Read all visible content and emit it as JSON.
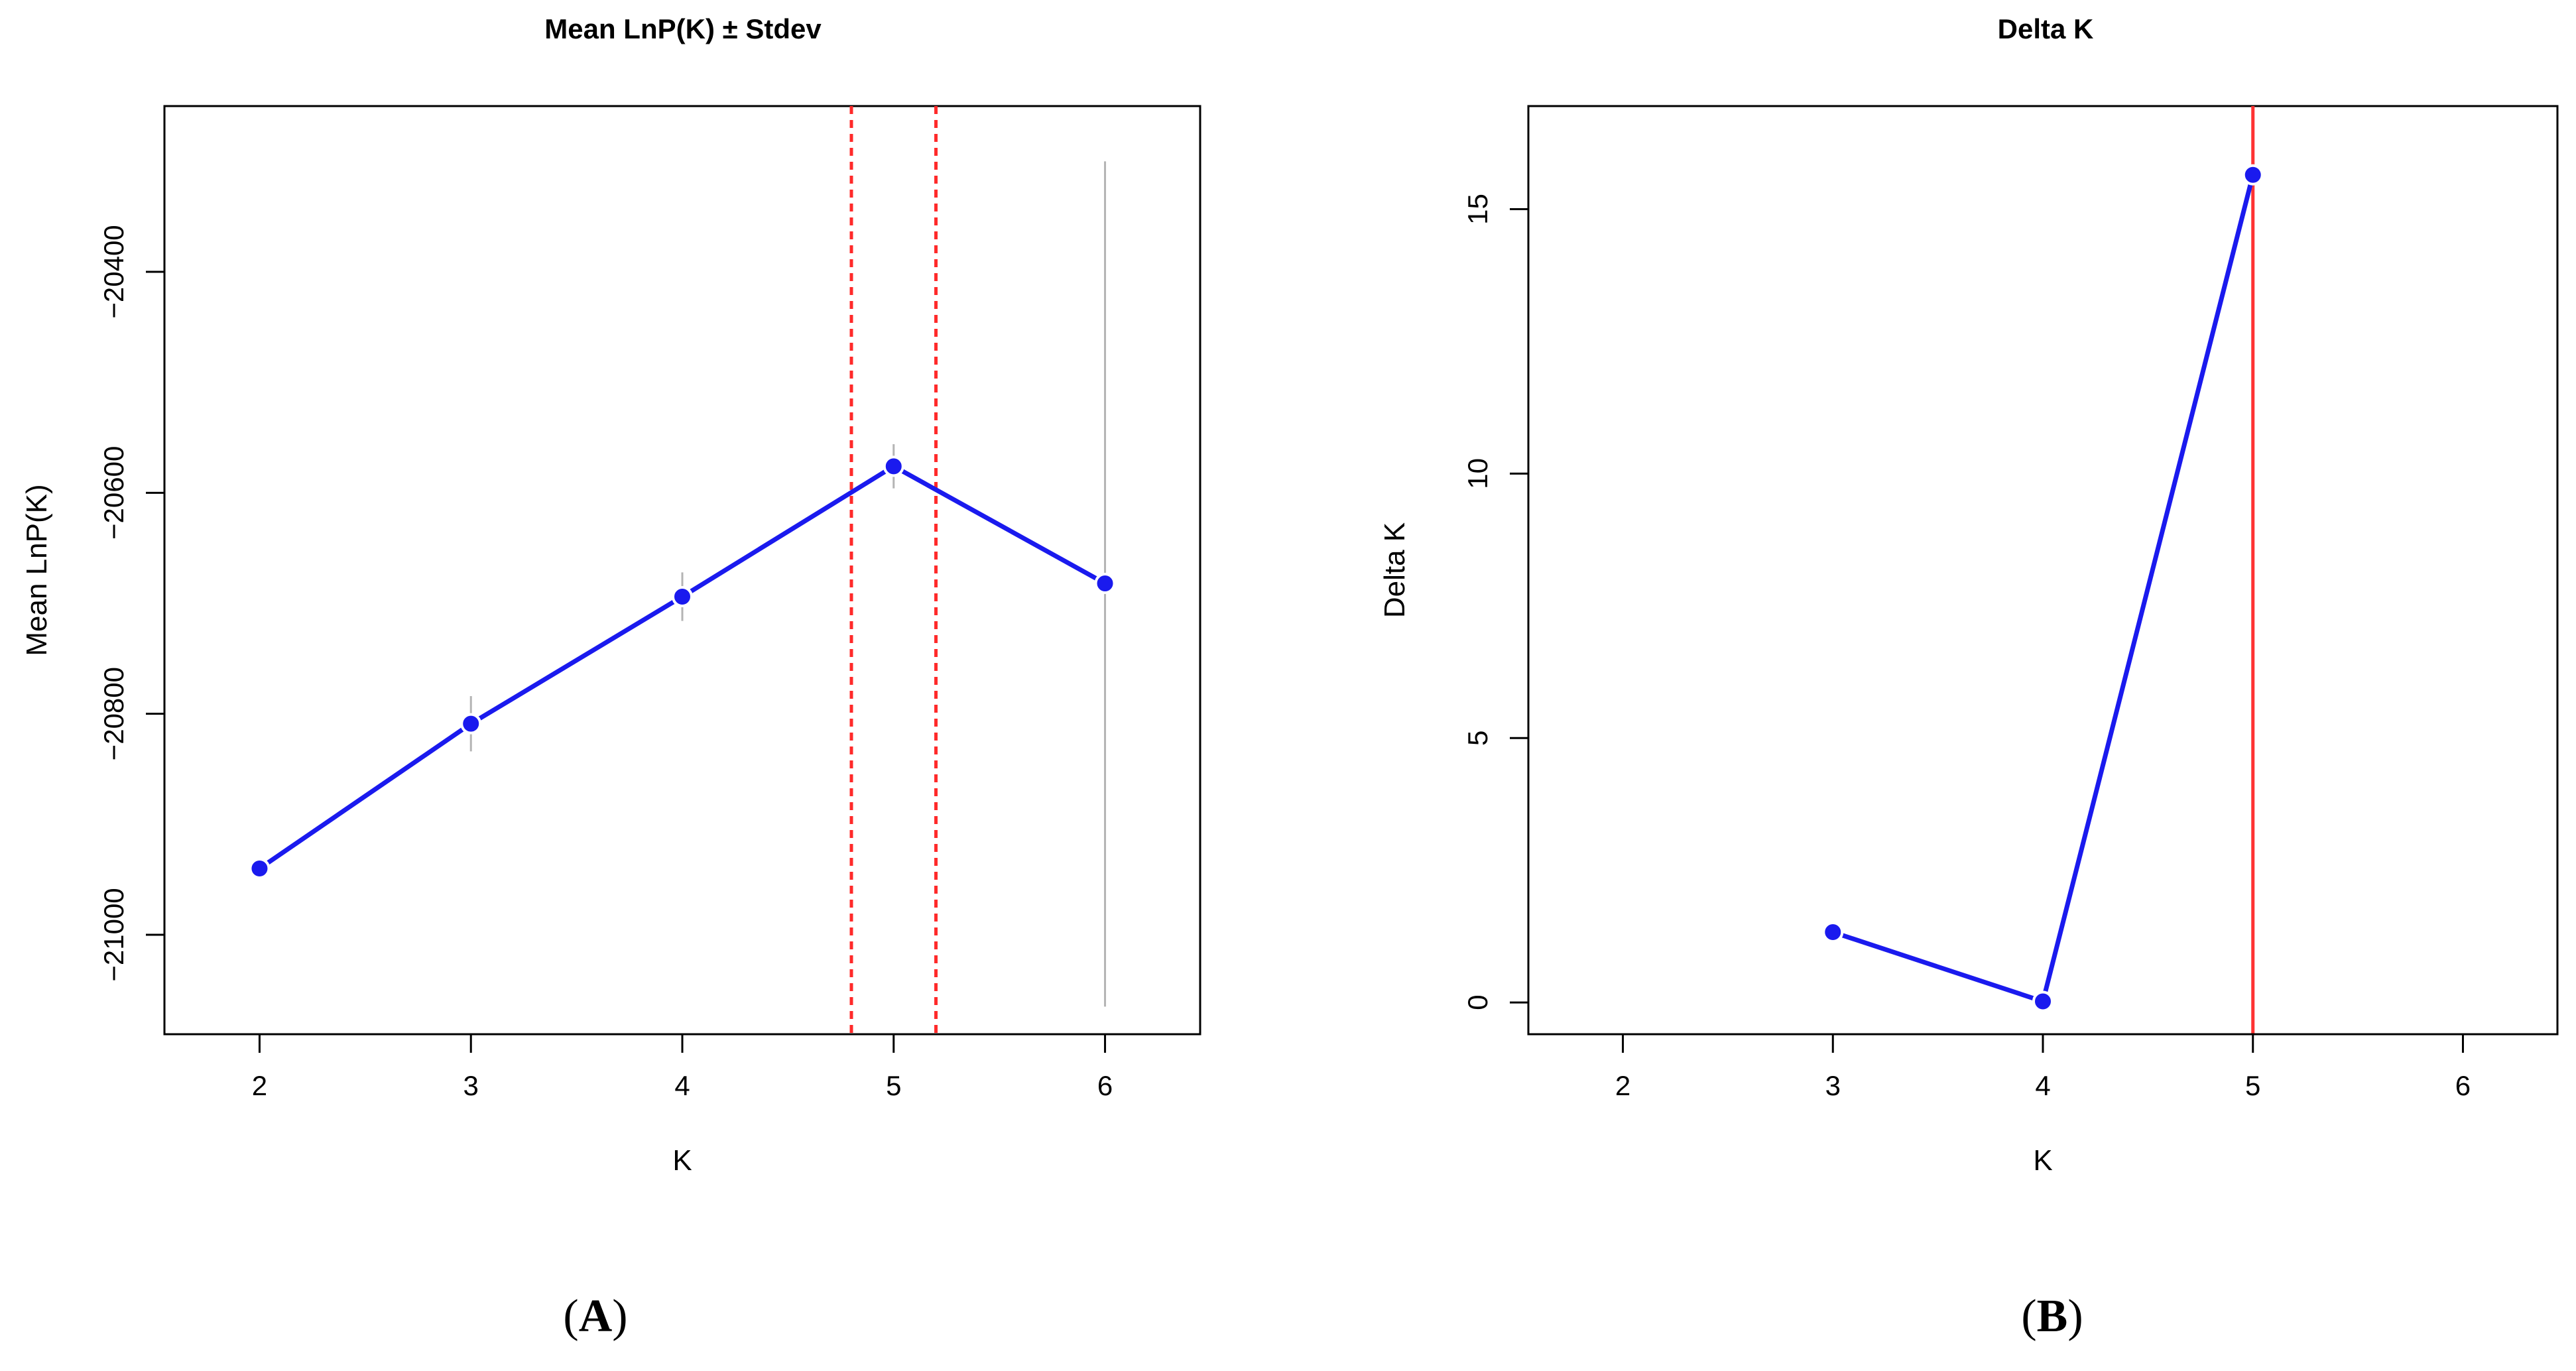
{
  "chart_data": [
    {
      "type": "line",
      "title": "Mean LnP(K) ± Stdev",
      "xlabel": "K",
      "ylabel": "Mean LnP(K)",
      "panel_label": "A",
      "x": [
        2,
        3,
        4,
        5,
        6
      ],
      "y": [
        -20940,
        -20809,
        -20694,
        -20576,
        -20682
      ],
      "error_bars": [
        {
          "x": 3,
          "low": -20834,
          "high": -20784
        },
        {
          "x": 4,
          "low": -20716,
          "high": -20672
        },
        {
          "x": 5,
          "low": -20596,
          "high": -20556
        },
        {
          "x": 6,
          "low": -21065,
          "high": -20300
        }
      ],
      "reference_lines_x": [
        4.8,
        5.2
      ],
      "xlim": [
        1.55,
        6.45
      ],
      "ylim": [
        -21090,
        -20250
      ],
      "xticks": [
        2,
        3,
        4,
        5,
        6
      ],
      "yticks": [
        -21000,
        -20800,
        -20600,
        -20400
      ],
      "grid": false,
      "colors": {
        "line": "#1a1aee",
        "reference": "#ff2a2a",
        "error": "#b4b4b4"
      }
    },
    {
      "type": "line",
      "title": "Delta K",
      "xlabel": "K",
      "ylabel": "Delta K",
      "panel_label": "B",
      "x": [
        3,
        4,
        5
      ],
      "y": [
        1.33,
        0.02,
        15.65
      ],
      "reference_lines_x": [
        5
      ],
      "xlim": [
        1.55,
        6.45
      ],
      "ylim": [
        -0.6,
        16.95
      ],
      "xticks": [
        2,
        3,
        4,
        5,
        6
      ],
      "yticks": [
        0,
        5,
        10,
        15
      ],
      "grid": false,
      "colors": {
        "line": "#1a1aee",
        "reference": "#ff3333"
      }
    }
  ]
}
